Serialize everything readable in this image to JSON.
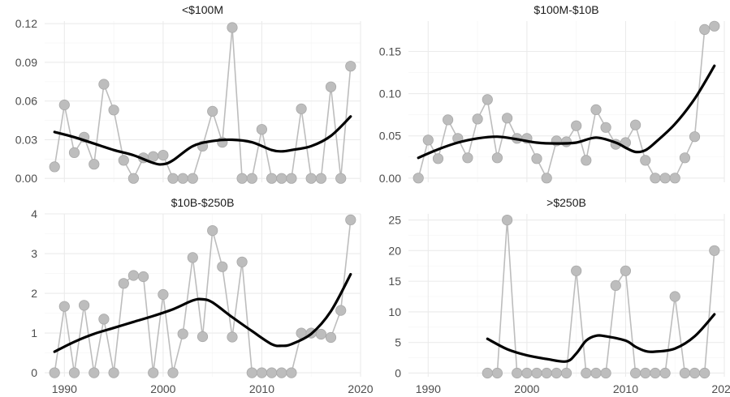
{
  "chart_data": [
    {
      "type": "line",
      "title": "<$100M",
      "xlim": [
        1988,
        2020
      ],
      "ylim": [
        -0.003,
        0.122
      ],
      "x_ticks": [
        1990,
        2000,
        2010,
        2020
      ],
      "x_tick_labels": [],
      "y_ticks": [
        0.0,
        0.03,
        0.06,
        0.09,
        0.12
      ],
      "y_tick_labels": [
        "0.00",
        "0.03",
        "0.06",
        "0.09",
        "0.12"
      ],
      "series": [
        {
          "kind": "raw",
          "color": "#bdbdbd",
          "x": [
            1989,
            1990,
            1991,
            1992,
            1993,
            1994,
            1995,
            1996,
            1997,
            1998,
            1999,
            2000,
            2001,
            2002,
            2003,
            2004,
            2005,
            2006,
            2007,
            2008,
            2009,
            2010,
            2011,
            2012,
            2013,
            2014,
            2015,
            2016,
            2017,
            2018,
            2019
          ],
          "y": [
            0.009,
            0.057,
            0.02,
            0.032,
            0.011,
            0.073,
            0.053,
            0.014,
            0.0,
            0.016,
            0.017,
            0.018,
            0.0,
            0.0,
            0.0,
            0.025,
            0.052,
            0.028,
            0.117,
            0.0,
            0.0,
            0.038,
            0.0,
            0.0,
            0.0,
            0.054,
            0.0,
            0.0,
            0.071,
            0.0,
            0.087
          ]
        },
        {
          "kind": "smooth",
          "color": "#000000",
          "x": [
            1989,
            1991,
            1993,
            1995,
            1997,
            1999,
            2000,
            2001,
            2003,
            2005,
            2007,
            2009,
            2011,
            2012,
            2013,
            2015,
            2017,
            2019
          ],
          "y": [
            0.036,
            0.032,
            0.027,
            0.022,
            0.018,
            0.012,
            0.011,
            0.014,
            0.025,
            0.029,
            0.03,
            0.028,
            0.022,
            0.021,
            0.022,
            0.025,
            0.033,
            0.048
          ]
        }
      ]
    },
    {
      "type": "line",
      "title": "$100M-$10B",
      "xlim": [
        1988,
        2020
      ],
      "ylim": [
        -0.005,
        0.186
      ],
      "x_ticks": [
        1990,
        2000,
        2010,
        2020
      ],
      "x_tick_labels": [],
      "y_ticks": [
        0.0,
        0.05,
        0.1,
        0.15
      ],
      "y_tick_labels": [
        "0.00",
        "0.05",
        "0.10",
        "0.15"
      ],
      "series": [
        {
          "kind": "raw",
          "color": "#bdbdbd",
          "x": [
            1989,
            1990,
            1991,
            1992,
            1993,
            1994,
            1995,
            1996,
            1997,
            1998,
            1999,
            2000,
            2001,
            2002,
            2003,
            2004,
            2005,
            2006,
            2007,
            2008,
            2009,
            2010,
            2011,
            2012,
            2013,
            2014,
            2015,
            2016,
            2017,
            2018,
            2019
          ],
          "y": [
            0.0,
            0.045,
            0.023,
            0.069,
            0.047,
            0.024,
            0.07,
            0.093,
            0.024,
            0.071,
            0.047,
            0.047,
            0.023,
            0.0,
            0.044,
            0.043,
            0.062,
            0.021,
            0.081,
            0.06,
            0.04,
            0.042,
            0.063,
            0.021,
            0.0,
            0.0,
            0.0,
            0.024,
            0.049,
            0.176,
            0.18
          ]
        },
        {
          "kind": "smooth",
          "color": "#000000",
          "x": [
            1989,
            1991,
            1993,
            1995,
            1997,
            1999,
            2001,
            2003,
            2005,
            2007,
            2009,
            2010,
            2011,
            2012,
            2013,
            2015,
            2017,
            2019
          ],
          "y": [
            0.024,
            0.034,
            0.042,
            0.047,
            0.049,
            0.046,
            0.042,
            0.041,
            0.042,
            0.048,
            0.042,
            0.036,
            0.031,
            0.033,
            0.042,
            0.064,
            0.094,
            0.133
          ]
        }
      ]
    },
    {
      "type": "line",
      "title": "$10B-$250B",
      "xlim": [
        1988,
        2020
      ],
      "ylim": [
        -0.1,
        4.0
      ],
      "x_ticks": [
        1990,
        2000,
        2010,
        2020
      ],
      "x_tick_labels": [
        "1990",
        "2000",
        "2010",
        "2020"
      ],
      "y_ticks": [
        0,
        1,
        2,
        3,
        4
      ],
      "y_tick_labels": [
        "0",
        "1",
        "2",
        "3",
        "4"
      ],
      "series": [
        {
          "kind": "raw",
          "color": "#bdbdbd",
          "x": [
            1989,
            1990,
            1991,
            1992,
            1993,
            1994,
            1995,
            1996,
            1997,
            1998,
            1999,
            2000,
            2001,
            2002,
            2003,
            2004,
            2005,
            2006,
            2007,
            2008,
            2009,
            2010,
            2011,
            2012,
            2013,
            2014,
            2015,
            2016,
            2017,
            2018,
            2019
          ],
          "y": [
            0.0,
            1.67,
            0.0,
            1.7,
            0.0,
            1.35,
            0.0,
            2.25,
            2.45,
            2.42,
            0.0,
            1.97,
            0.0,
            0.98,
            2.9,
            0.91,
            3.58,
            2.67,
            0.9,
            2.79,
            0.0,
            0.0,
            0.0,
            0.0,
            0.0,
            1.0,
            1.0,
            0.97,
            0.89,
            1.57,
            3.85
          ]
        },
        {
          "kind": "smooth",
          "color": "#000000",
          "x": [
            1989,
            1991,
            1993,
            1995,
            1997,
            1999,
            2001,
            2003,
            2004,
            2005,
            2007,
            2009,
            2011,
            2012,
            2013,
            2015,
            2017,
            2019
          ],
          "y": [
            0.53,
            0.78,
            0.98,
            1.13,
            1.28,
            1.43,
            1.6,
            1.82,
            1.85,
            1.77,
            1.4,
            1.05,
            0.72,
            0.68,
            0.72,
            0.98,
            1.55,
            2.48
          ]
        }
      ]
    },
    {
      "type": "line",
      "title": ">$250B",
      "xlim": [
        1988,
        2020
      ],
      "ylim": [
        -0.6,
        26.0
      ],
      "x_ticks": [
        1990,
        2000,
        2010,
        2020
      ],
      "x_tick_labels": [
        "1990",
        "2000",
        "2010",
        "2020"
      ],
      "y_ticks": [
        0,
        5,
        10,
        15,
        20,
        25
      ],
      "y_tick_labels": [
        "0",
        "5",
        "10",
        "15",
        "20",
        "25"
      ],
      "series": [
        {
          "kind": "raw",
          "color": "#bdbdbd",
          "x": [
            1996,
            1997,
            1998,
            1999,
            2000,
            2001,
            2002,
            2003,
            2004,
            2005,
            2006,
            2007,
            2008,
            2009,
            2010,
            2011,
            2012,
            2013,
            2014,
            2015,
            2016,
            2017,
            2018,
            2019
          ],
          "y": [
            0.0,
            0.0,
            25.0,
            0.0,
            0.0,
            0.0,
            0.0,
            0.0,
            0.0,
            16.7,
            0.0,
            0.0,
            0.0,
            14.3,
            16.7,
            0.0,
            0.0,
            0.0,
            0.0,
            12.5,
            0.0,
            0.0,
            0.0,
            20.0
          ]
        },
        {
          "kind": "smooth",
          "color": "#000000",
          "x": [
            1996,
            1998,
            2000,
            2002,
            2004,
            2005,
            2006,
            2007,
            2008,
            2010,
            2011,
            2012,
            2013,
            2015,
            2017,
            2019
          ],
          "y": [
            5.6,
            3.9,
            2.9,
            2.3,
            1.9,
            3.2,
            5.3,
            6.1,
            6.0,
            5.3,
            4.3,
            3.6,
            3.5,
            4.0,
            6.0,
            9.6
          ]
        }
      ]
    }
  ]
}
